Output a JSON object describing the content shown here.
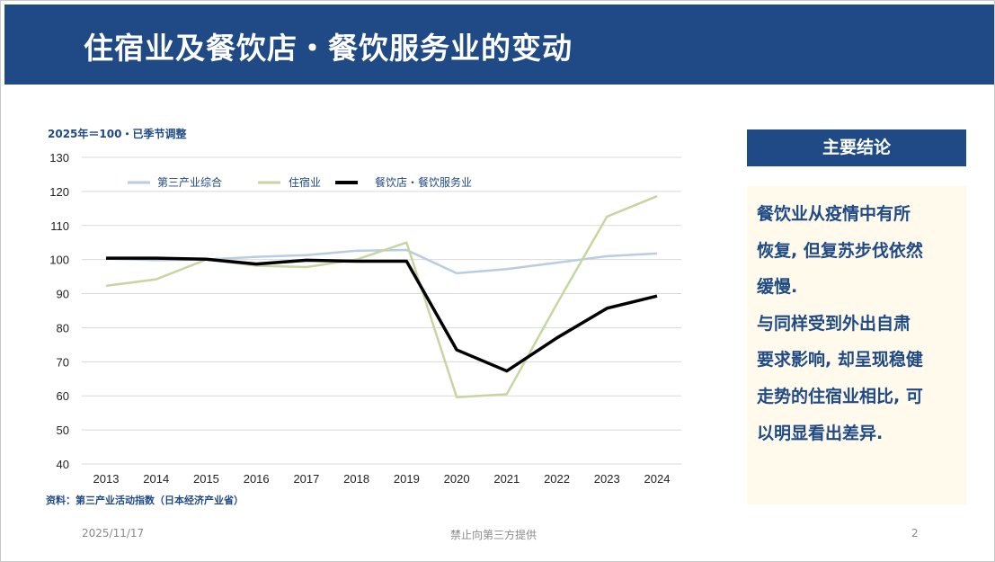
{
  "header": {
    "title": "住宿业及餐饮店・餐饮服务业的变动"
  },
  "chart_data": {
    "type": "line",
    "unit_note": "2025年＝100・已季节调整",
    "x": [
      "2013",
      "2014",
      "2015",
      "2016",
      "2017",
      "2018",
      "2019",
      "2020",
      "2021",
      "2022",
      "2023",
      "2024"
    ],
    "ylim": [
      40,
      130
    ],
    "yticks": [
      40,
      50,
      60,
      70,
      80,
      90,
      100,
      110,
      120,
      130
    ],
    "grid": true,
    "legend_position": "top-left",
    "series": [
      {
        "name": "第三产业综合",
        "color": "#b9cde2",
        "values": [
          100.3,
          99.8,
          100,
          100.8,
          101.3,
          102.6,
          102.8,
          96,
          97.2,
          99.1,
          101,
          101.8
        ]
      },
      {
        "name": "住宿业",
        "color": "#c5d6a0",
        "values": [
          92.3,
          94.2,
          100,
          98.2,
          97.8,
          100,
          105,
          59.6,
          60.5,
          87,
          112.6,
          118.6
        ]
      },
      {
        "name": "餐饮店・餐饮服务业",
        "color": "#000000",
        "values": [
          100.4,
          100.4,
          100.1,
          98.7,
          99.8,
          99.5,
          99.5,
          73.5,
          67.3,
          77,
          85.7,
          89.3
        ]
      }
    ],
    "source": "资料：第三产业活动指数（日本经济产业省）"
  },
  "conclusion": {
    "title": "主要结论",
    "lines": [
      "餐饮业从疫情中有所",
      "恢复, 但复苏步伐依然",
      "缓慢.",
      "与同样受到外出自肃",
      "要求影响, 却呈现稳健",
      "走势的住宿业相比, 可",
      "以明显看出差异."
    ]
  },
  "footer": {
    "date": "2025/11/17",
    "notice": "禁止向第三方提供",
    "page": "2"
  }
}
